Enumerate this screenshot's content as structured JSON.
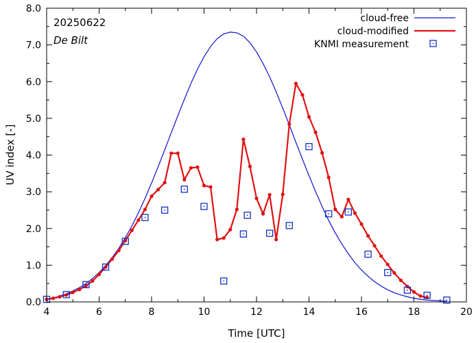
{
  "chart_data": {
    "type": "line",
    "title": "",
    "annotations": {
      "date": "20250622",
      "location": "De Bilt"
    },
    "xlabel": "Time  [UTC]",
    "ylabel": "UV index  [-]",
    "xlim": [
      4,
      20
    ],
    "ylim": [
      0,
      8
    ],
    "xticks": [
      4,
      6,
      8,
      10,
      12,
      14,
      16,
      18,
      20
    ],
    "xtick_labels": [
      "4",
      "6",
      "8",
      "10",
      "12",
      "14",
      "16",
      "18",
      "20"
    ],
    "yticks": [
      0,
      1,
      2,
      3,
      4,
      5,
      6,
      7,
      8
    ],
    "ytick_labels": [
      "0.0",
      "1.0",
      "2.0",
      "3.0",
      "4.0",
      "5.0",
      "6.0",
      "7.0",
      "8.0"
    ],
    "legend_position": "top-right",
    "colors": {
      "cloud_free": "#1010d0",
      "cloud_modified": "#e01010",
      "measurement": "#1030c0"
    },
    "series": [
      {
        "name": "cloud-free",
        "style": "line",
        "peak_time": 11.67,
        "peak_value": 7.35,
        "x": [
          4.0,
          4.25,
          4.5,
          4.75,
          5.0,
          5.25,
          5.5,
          5.75,
          6.0,
          6.25,
          6.5,
          6.75,
          7.0,
          7.25,
          7.5,
          7.75,
          8.0,
          8.25,
          8.5,
          8.75,
          9.0,
          9.25,
          9.5,
          9.75,
          10.0,
          10.25,
          10.5,
          10.75,
          11.0,
          11.25,
          11.5,
          11.75,
          12.0,
          12.25,
          12.5,
          12.75,
          13.0,
          13.25,
          13.5,
          13.75,
          14.0,
          14.25,
          14.5,
          14.75,
          15.0,
          15.25,
          15.5,
          15.75,
          16.0,
          16.25,
          16.5,
          16.75,
          17.0,
          17.25,
          17.5,
          17.75,
          18.0,
          18.25,
          18.5,
          18.75,
          19.0,
          19.25
        ],
        "values": [
          0.07,
          0.11,
          0.16,
          0.22,
          0.3,
          0.39,
          0.5,
          0.64,
          0.8,
          0.99,
          1.21,
          1.46,
          1.75,
          2.07,
          2.43,
          2.82,
          3.24,
          3.68,
          4.14,
          4.61,
          5.07,
          5.52,
          5.95,
          6.34,
          6.68,
          6.96,
          7.17,
          7.3,
          7.35,
          7.33,
          7.24,
          7.06,
          6.81,
          6.49,
          6.13,
          5.72,
          5.28,
          4.82,
          4.35,
          3.89,
          3.44,
          3.01,
          2.6,
          2.22,
          1.88,
          1.58,
          1.31,
          1.07,
          0.87,
          0.7,
          0.55,
          0.43,
          0.33,
          0.25,
          0.19,
          0.14,
          0.1,
          0.07,
          0.05,
          0.04,
          0.03,
          0.02
        ]
      },
      {
        "name": "cloud-modified",
        "style": "line-points",
        "x": [
          4.0,
          4.25,
          4.5,
          4.75,
          5.0,
          5.25,
          5.5,
          5.75,
          6.0,
          6.25,
          6.5,
          6.75,
          7.0,
          7.25,
          7.5,
          7.75,
          8.0,
          8.25,
          8.5,
          8.75,
          9.0,
          9.25,
          9.5,
          9.75,
          10.0,
          10.25,
          10.5,
          10.75,
          11.0,
          11.25,
          11.5,
          11.75,
          12.0,
          12.25,
          12.5,
          12.75,
          13.0,
          13.25,
          13.5,
          13.75,
          14.0,
          14.25,
          14.5,
          14.75,
          15.0,
          15.25,
          15.5,
          15.75,
          16.0,
          16.25,
          16.5,
          16.75,
          17.0,
          17.25,
          17.5,
          17.75,
          18.0,
          18.25,
          18.5
        ],
        "values": [
          0.07,
          0.1,
          0.14,
          0.19,
          0.26,
          0.34,
          0.44,
          0.57,
          0.75,
          0.95,
          1.17,
          1.4,
          1.67,
          1.95,
          2.23,
          2.52,
          2.88,
          3.06,
          3.25,
          4.05,
          4.05,
          3.33,
          3.65,
          3.67,
          3.17,
          3.13,
          1.7,
          1.74,
          1.97,
          2.52,
          4.43,
          3.69,
          2.82,
          2.4,
          2.92,
          1.7,
          2.93,
          4.84,
          5.95,
          5.64,
          5.04,
          4.62,
          4.06,
          3.39,
          2.52,
          2.32,
          2.79,
          2.42,
          2.12,
          1.8,
          1.53,
          1.25,
          1.02,
          0.79,
          0.59,
          0.42,
          0.27,
          0.16,
          0.12
        ]
      },
      {
        "name": "KNMI measurement",
        "style": "points",
        "x": [
          4.0,
          4.75,
          5.5,
          6.25,
          7.0,
          7.75,
          8.5,
          9.25,
          10.0,
          10.75,
          11.5,
          11.65,
          12.5,
          13.25,
          14.0,
          14.75,
          15.5,
          16.25,
          17.0,
          17.75,
          18.5,
          19.25
        ],
        "values": [
          0.07,
          0.2,
          0.47,
          0.95,
          1.65,
          2.3,
          2.5,
          3.07,
          2.6,
          0.57,
          1.85,
          2.36,
          1.87,
          2.08,
          4.23,
          2.4,
          2.45,
          1.3,
          0.8,
          0.32,
          0.18,
          0.05
        ]
      }
    ]
  }
}
